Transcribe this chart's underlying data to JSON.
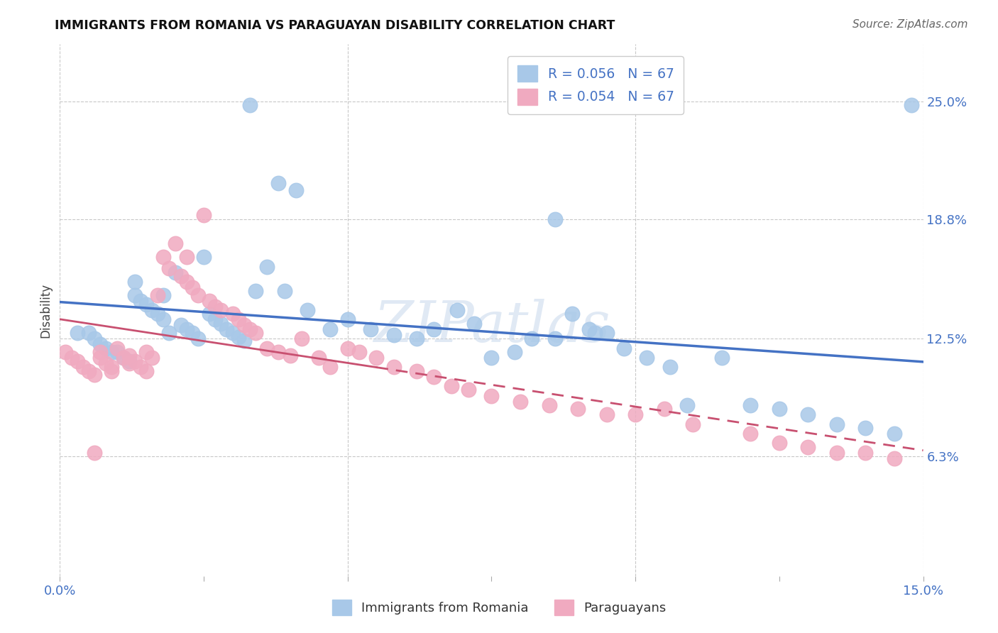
{
  "title": "IMMIGRANTS FROM ROMANIA VS PARAGUAYAN DISABILITY CORRELATION CHART",
  "source": "Source: ZipAtlas.com",
  "ylabel": "Disability",
  "xlim": [
    0.0,
    0.15
  ],
  "ylim": [
    0.0,
    0.28
  ],
  "ytick_positions": [
    0.063,
    0.125,
    0.188,
    0.25
  ],
  "ytick_labels": [
    "6.3%",
    "12.5%",
    "18.8%",
    "25.0%"
  ],
  "legend_entries": [
    {
      "label": "R = 0.056   N = 67",
      "color": "#a8c8e8"
    },
    {
      "label": "R = 0.054   N = 67",
      "color": "#f0aac0"
    }
  ],
  "legend_text_color": "#4472c4",
  "series1_color": "#a8c8e8",
  "series2_color": "#f0aac0",
  "trendline1_color": "#4472c4",
  "trendline2_color": "#c85070",
  "background_color": "#ffffff",
  "grid_color": "#c8c8c8",
  "axis_label_color": "#4472c4",
  "blue_x": [
    0.033,
    0.038,
    0.041,
    0.003,
    0.005,
    0.006,
    0.007,
    0.008,
    0.009,
    0.01,
    0.011,
    0.012,
    0.013,
    0.013,
    0.014,
    0.015,
    0.016,
    0.017,
    0.018,
    0.018,
    0.019,
    0.02,
    0.021,
    0.022,
    0.023,
    0.024,
    0.025,
    0.026,
    0.027,
    0.028,
    0.029,
    0.03,
    0.031,
    0.032,
    0.034,
    0.036,
    0.039,
    0.043,
    0.047,
    0.05,
    0.054,
    0.058,
    0.062,
    0.065,
    0.069,
    0.072,
    0.075,
    0.079,
    0.082,
    0.086,
    0.089,
    0.092,
    0.095,
    0.098,
    0.102,
    0.106,
    0.109,
    0.115,
    0.12,
    0.125,
    0.13,
    0.135,
    0.14,
    0.145,
    0.148,
    0.086,
    0.093
  ],
  "blue_y": [
    0.248,
    0.207,
    0.203,
    0.128,
    0.128,
    0.125,
    0.122,
    0.12,
    0.118,
    0.118,
    0.115,
    0.113,
    0.155,
    0.148,
    0.145,
    0.143,
    0.14,
    0.138,
    0.135,
    0.148,
    0.128,
    0.16,
    0.132,
    0.13,
    0.128,
    0.125,
    0.168,
    0.138,
    0.135,
    0.133,
    0.13,
    0.128,
    0.126,
    0.124,
    0.15,
    0.163,
    0.15,
    0.14,
    0.13,
    0.135,
    0.13,
    0.127,
    0.125,
    0.13,
    0.14,
    0.133,
    0.115,
    0.118,
    0.125,
    0.125,
    0.138,
    0.13,
    0.128,
    0.12,
    0.115,
    0.11,
    0.09,
    0.115,
    0.09,
    0.088,
    0.085,
    0.08,
    0.078,
    0.075,
    0.248,
    0.188,
    0.128
  ],
  "pink_x": [
    0.001,
    0.002,
    0.003,
    0.004,
    0.005,
    0.006,
    0.007,
    0.007,
    0.008,
    0.009,
    0.009,
    0.01,
    0.011,
    0.012,
    0.012,
    0.013,
    0.014,
    0.015,
    0.015,
    0.016,
    0.017,
    0.018,
    0.019,
    0.02,
    0.021,
    0.022,
    0.022,
    0.023,
    0.024,
    0.025,
    0.026,
    0.027,
    0.028,
    0.03,
    0.031,
    0.032,
    0.033,
    0.034,
    0.036,
    0.038,
    0.04,
    0.042,
    0.045,
    0.047,
    0.05,
    0.052,
    0.055,
    0.058,
    0.062,
    0.065,
    0.068,
    0.071,
    0.075,
    0.08,
    0.085,
    0.09,
    0.095,
    0.1,
    0.105,
    0.11,
    0.12,
    0.125,
    0.13,
    0.135,
    0.14,
    0.145,
    0.006
  ],
  "pink_y": [
    0.118,
    0.115,
    0.113,
    0.11,
    0.108,
    0.106,
    0.118,
    0.115,
    0.112,
    0.11,
    0.108,
    0.12,
    0.115,
    0.112,
    0.116,
    0.113,
    0.11,
    0.108,
    0.118,
    0.115,
    0.148,
    0.168,
    0.162,
    0.175,
    0.158,
    0.155,
    0.168,
    0.152,
    0.148,
    0.19,
    0.145,
    0.142,
    0.14,
    0.138,
    0.135,
    0.132,
    0.13,
    0.128,
    0.12,
    0.118,
    0.116,
    0.125,
    0.115,
    0.11,
    0.12,
    0.118,
    0.115,
    0.11,
    0.108,
    0.105,
    0.1,
    0.098,
    0.095,
    0.092,
    0.09,
    0.088,
    0.085,
    0.085,
    0.088,
    0.08,
    0.075,
    0.07,
    0.068,
    0.065,
    0.065,
    0.062,
    0.065
  ]
}
